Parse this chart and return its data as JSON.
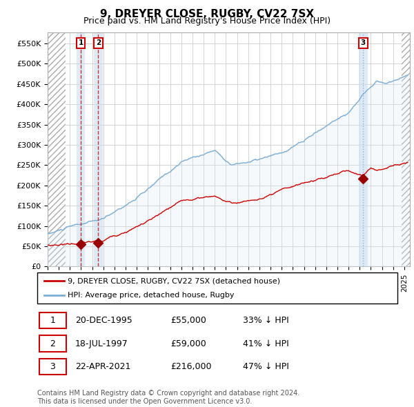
{
  "title": "9, DREYER CLOSE, RUGBY, CV22 7SX",
  "subtitle": "Price paid vs. HM Land Registry's House Price Index (HPI)",
  "title_fontsize": 11,
  "subtitle_fontsize": 9,
  "ylim": [
    0,
    577000
  ],
  "yticks": [
    0,
    50000,
    100000,
    150000,
    200000,
    250000,
    300000,
    350000,
    400000,
    450000,
    500000,
    550000
  ],
  "ytick_labels": [
    "£0",
    "£50K",
    "£100K",
    "£150K",
    "£200K",
    "£250K",
    "£300K",
    "£350K",
    "£400K",
    "£450K",
    "£500K",
    "£550K"
  ],
  "xlim_start": 1993.0,
  "xlim_end": 2025.5,
  "xticks": [
    1993,
    1994,
    1995,
    1996,
    1997,
    1998,
    1999,
    2000,
    2001,
    2002,
    2003,
    2004,
    2005,
    2006,
    2007,
    2008,
    2009,
    2010,
    2011,
    2012,
    2013,
    2014,
    2015,
    2016,
    2017,
    2018,
    2019,
    2020,
    2021,
    2022,
    2023,
    2024,
    2025
  ],
  "sale_dates_year": [
    1995.97,
    1997.54,
    2021.31
  ],
  "sale_prices": [
    55000,
    59000,
    216000
  ],
  "sale_labels": [
    "1",
    "2",
    "3"
  ],
  "red_line_color": "#cc0000",
  "blue_line_color": "#7aadd4",
  "blue_fill_color": "#d8eaf7",
  "marker_color": "#990000",
  "label_box_color": "#cc0000",
  "grid_color": "#cccccc",
  "hatch_color": "#aaaaaa",
  "background_color": "#ffffff",
  "sale_band_color": "#c8dff0",
  "footnote": "Contains HM Land Registry data © Crown copyright and database right 2024.\nThis data is licensed under the Open Government Licence v3.0.",
  "legend_entry1": "9, DREYER CLOSE, RUGBY, CV22 7SX (detached house)",
  "legend_entry2": "HPI: Average price, detached house, Rugby",
  "table_rows": [
    [
      "1",
      "20-DEC-1995",
      "£55,000",
      "33% ↓ HPI"
    ],
    [
      "2",
      "18-JUL-1997",
      "£59,000",
      "41% ↓ HPI"
    ],
    [
      "3",
      "22-APR-2021",
      "£216,000",
      "47% ↓ HPI"
    ]
  ]
}
